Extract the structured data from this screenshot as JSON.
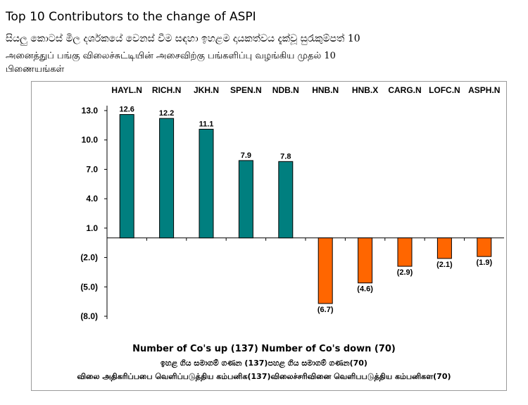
{
  "header": {
    "title_en": "Top 10 Contributors to the change of ASPI",
    "title_si": "සියලු කොටස් මිල දර්ශකයේ වෙනස් වීම සඳහා ඉහළම දායකත්වය දැක්වූ සුරැකුම්පත් 10",
    "title_ta_line1": "அனைத்துப் பங்கு விலைச்சுட்டியின் அசைவிற்கு பங்களிப்பு வழங்கிய முதல் 10",
    "title_ta_line2": "பிணையங்கள்"
  },
  "footer": {
    "line_en": "Number of Co's up (137) Number of Co's down  (70)",
    "line_si": "ඉහළ ගිය සමාගම් ගණන (137)පහළ ගිය සමාගම් ගණන(70)",
    "line_ta": "விலை அதிகரிப்பபை வெளிப்படுத்திய கம்பனிக(137)விலைச்சரிவினை வெளிபபடுத்திய கம்பனிகள(70)"
  },
  "colors": {
    "positive": "#007f7f",
    "negative": "#ff6600",
    "frame": "#9a9a9a"
  },
  "chart_data": {
    "type": "bar",
    "categories": [
      "HAYL.N",
      "RICH.N",
      "JKH.N",
      "SPEN.N",
      "NDB.N",
      "HNB.N",
      "HNB.X",
      "CARG.N",
      "LOFC.N",
      "ASPH.N"
    ],
    "values": [
      12.6,
      12.2,
      11.1,
      7.9,
      7.8,
      -6.7,
      -4.6,
      -2.9,
      -2.1,
      -1.9
    ],
    "data_labels": [
      "12.6",
      "12.2",
      "11.1",
      "7.9",
      "7.8",
      "(6.7)",
      "(4.6)",
      "(2.9)",
      "(2.1)",
      "(1.9)"
    ],
    "y_ticks": [
      13,
      10,
      7,
      4,
      1,
      -2,
      -5,
      -8
    ],
    "y_tick_labels": [
      "13.0",
      "10.0",
      "7.0",
      "4.0",
      "1.0",
      "(2.0)",
      "(5.0)",
      "(8.0)"
    ],
    "ylim": [
      -8,
      13
    ],
    "category_axis_position": "top",
    "grid": false,
    "legend": "none"
  }
}
